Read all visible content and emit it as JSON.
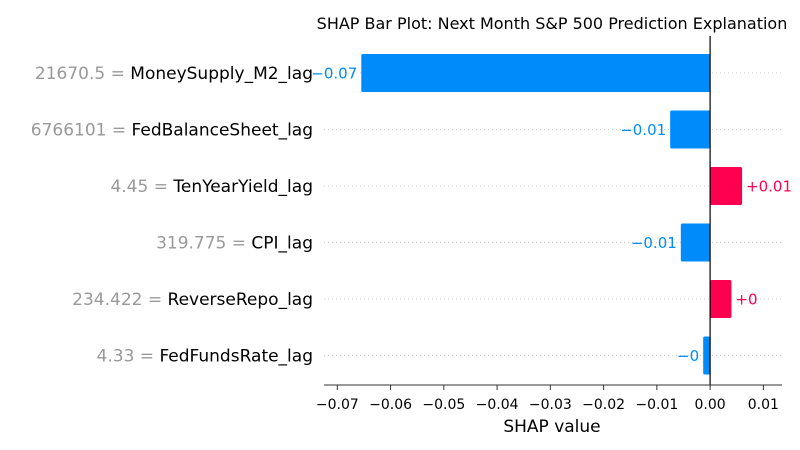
{
  "chart_data": {
    "type": "bar",
    "orientation": "horizontal",
    "title": "SHAP Bar Plot: Next Month S&P 500 Prediction Explanation",
    "xlabel": "SHAP value",
    "xlim": [
      -0.0725,
      0.0135
    ],
    "xticks": [
      -0.07,
      -0.06,
      -0.05,
      -0.04,
      -0.03,
      -0.02,
      -0.01,
      0.0,
      0.01
    ],
    "xtick_labels": [
      "−0.07",
      "−0.06",
      "−0.05",
      "−0.04",
      "−0.03",
      "−0.02",
      "−0.01",
      "0.00",
      "0.01"
    ],
    "grid": "horizontal dotted per row",
    "features": [
      {
        "value_text": "21670.5",
        "name": "MoneySupply_M2_lag",
        "shap": -0.0655,
        "label": "−0.07"
      },
      {
        "value_text": "6766101",
        "name": "FedBalanceSheet_lag",
        "shap": -0.0075,
        "label": "−0.01"
      },
      {
        "value_text": "4.45",
        "name": "TenYearYield_lag",
        "shap": 0.006,
        "label": "+0.01"
      },
      {
        "value_text": "319.775",
        "name": "CPI_lag",
        "shap": -0.0055,
        "label": "−0.01"
      },
      {
        "value_text": "234.422",
        "name": "ReverseRepo_lag",
        "shap": 0.004,
        "label": "+0"
      },
      {
        "value_text": "4.33",
        "name": "FedFundsRate_lag",
        "shap": -0.0013,
        "label": "−0"
      }
    ],
    "colors": {
      "positive": "#ff0051",
      "negative": "#008bfb",
      "value_text": "#999999",
      "name_text": "#000000",
      "zero_line": "#000000",
      "grid": "#cccccc"
    }
  }
}
